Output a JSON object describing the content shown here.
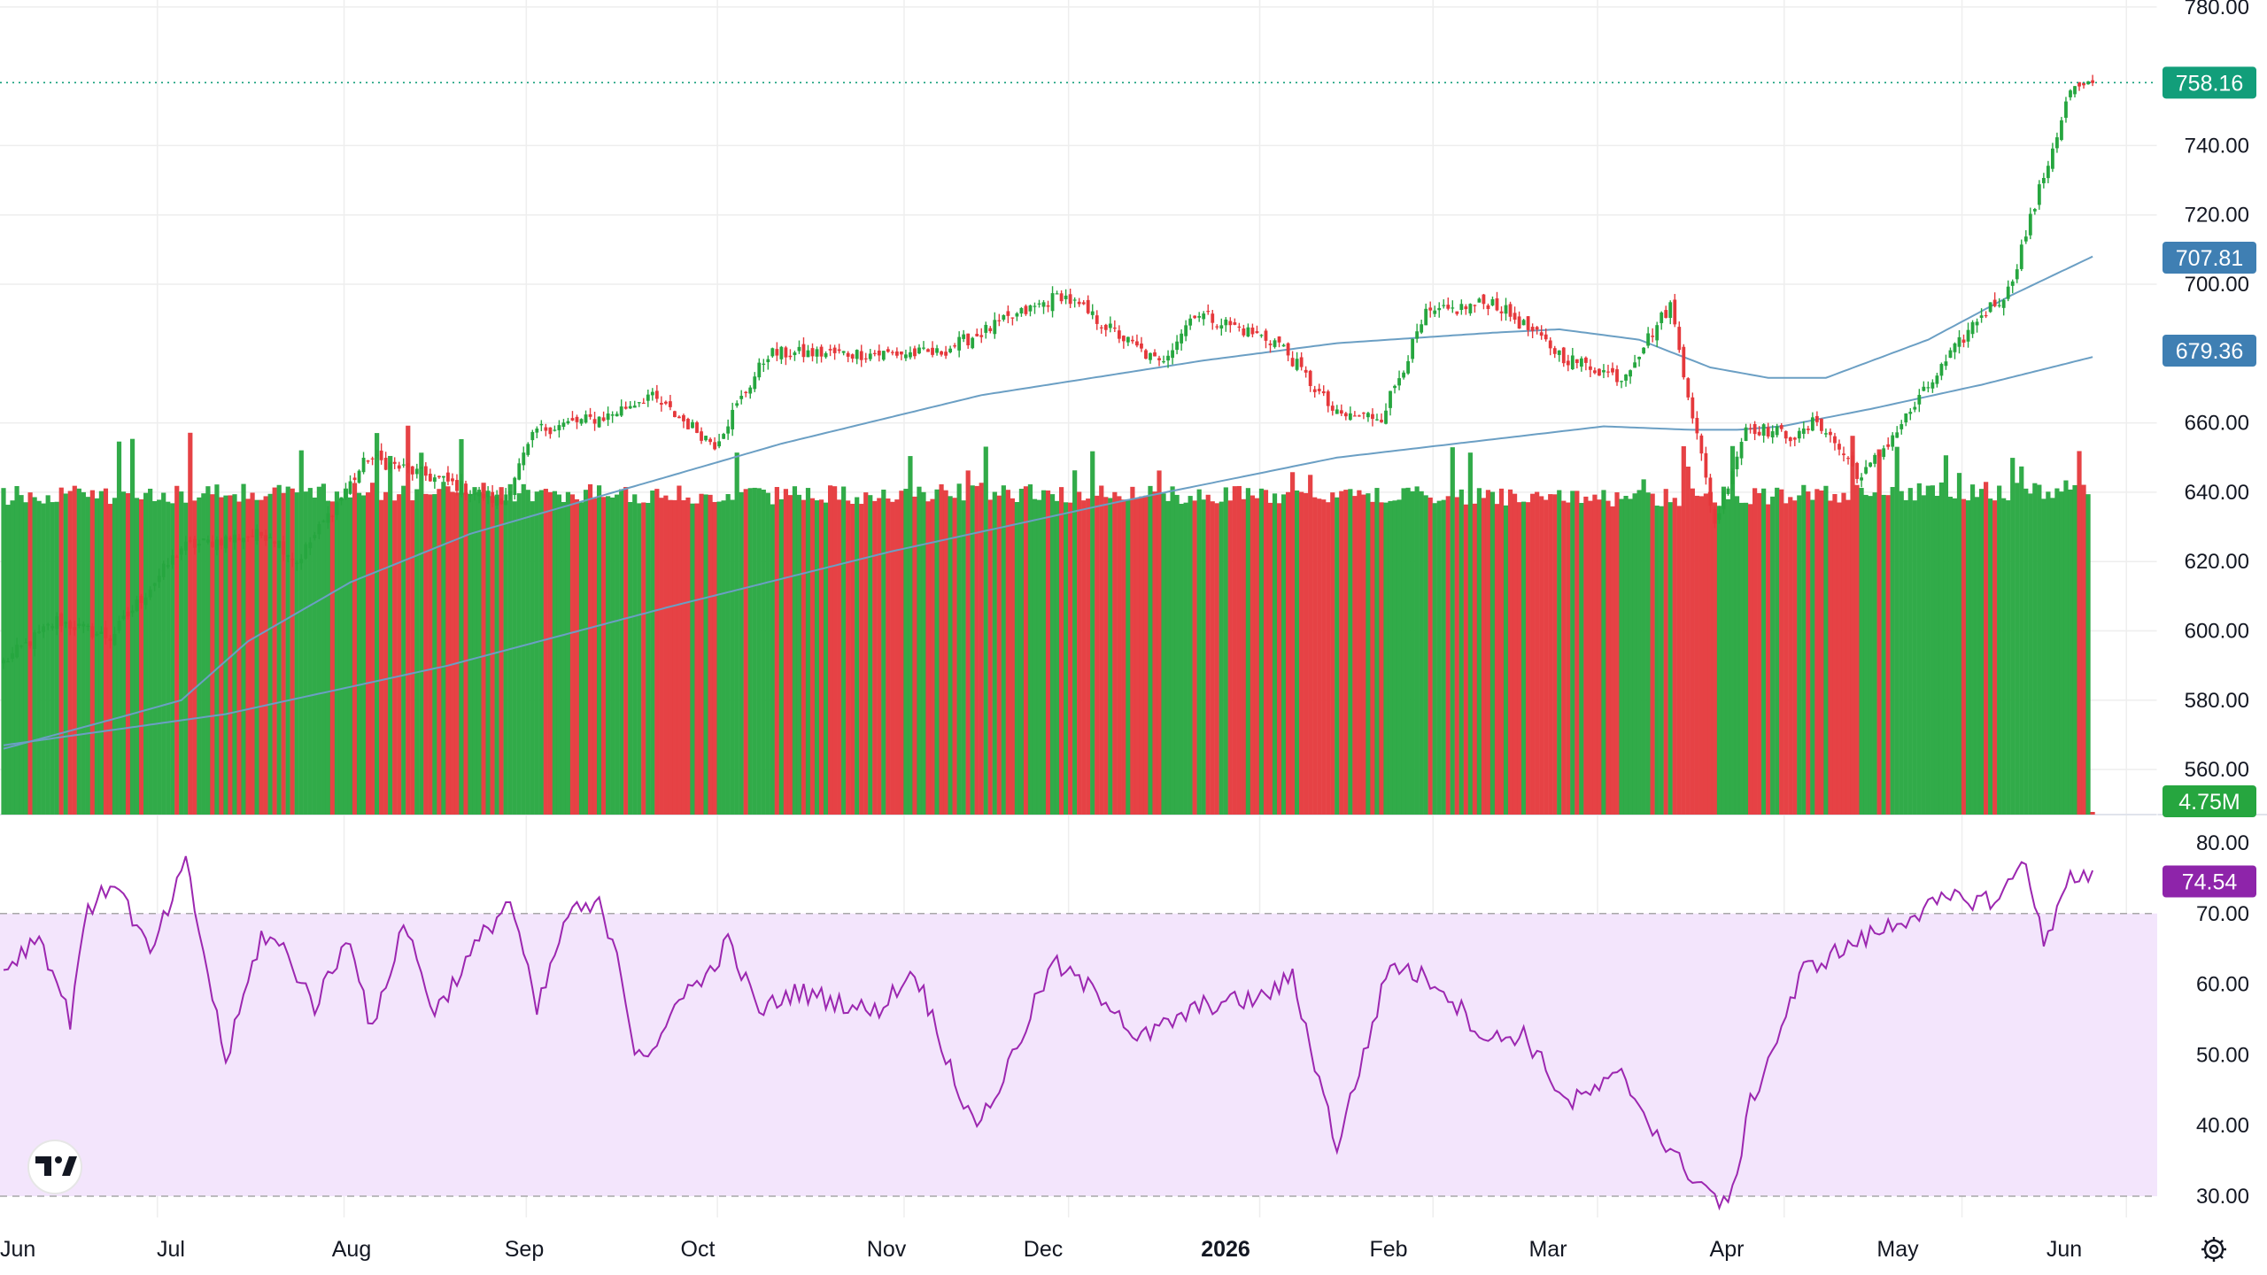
{
  "chart_data": {
    "type": "candlestick",
    "price_axis": {
      "ticks": [
        "780.00",
        "740.00",
        "720.00",
        "700.00",
        "660.00",
        "640.00",
        "620.00",
        "600.00",
        "580.00",
        "560.00"
      ],
      "tick_values": [
        780,
        740,
        720,
        700,
        660,
        640,
        620,
        600,
        580,
        560
      ],
      "range": [
        547,
        782
      ],
      "grid": true
    },
    "rsi_axis": {
      "ticks": [
        "80.00",
        "70.00",
        "60.00",
        "50.00",
        "40.00",
        "30.00"
      ],
      "tick_values": [
        80,
        70,
        60,
        50,
        40,
        30
      ],
      "range": [
        27,
        84
      ],
      "upper_band": 70,
      "lower_band": 30
    },
    "time_axis": {
      "labels": [
        "Jun",
        "Jul",
        "Aug",
        "Sep",
        "Oct",
        "Nov",
        "Dec",
        "2026",
        "Feb",
        "Mar",
        "Apr",
        "May",
        "Jun"
      ],
      "bold": [
        false,
        false,
        false,
        false,
        false,
        false,
        false,
        true,
        false,
        false,
        false,
        false,
        false
      ]
    },
    "badges": {
      "last_price": "758.16",
      "ma_short": "707.81",
      "ma_long": "679.36",
      "volume": "4.75M",
      "rsi": "74.54"
    },
    "colors": {
      "up": "#26a63f",
      "down": "#e5383b",
      "last_price": "#129e7a",
      "ma": "#6b9fc4",
      "ma_badge": "#3f7fb3",
      "rsi_line": "#9c27b0",
      "rsi_fill": "#f3e5fc",
      "rsi_badge": "#8e24aa",
      "grid": "#eeeeee"
    },
    "series_price_anchors": [
      [
        0,
        591
      ],
      [
        12,
        603
      ],
      [
        24,
        598
      ],
      [
        40,
        624
      ],
      [
        52,
        627
      ],
      [
        60,
        628
      ],
      [
        66,
        620
      ],
      [
        82,
        650
      ],
      [
        102,
        642
      ],
      [
        112,
        637
      ],
      [
        120,
        658
      ],
      [
        136,
        662
      ],
      [
        145,
        668
      ],
      [
        160,
        654
      ],
      [
        172,
        680
      ],
      [
        190,
        680
      ],
      [
        210,
        680
      ],
      [
        238,
        697
      ],
      [
        260,
        677
      ],
      [
        268,
        692
      ],
      [
        287,
        683
      ],
      [
        300,
        662
      ],
      [
        310,
        662
      ],
      [
        320,
        691
      ],
      [
        335,
        695
      ],
      [
        351,
        679
      ],
      [
        364,
        673
      ],
      [
        375,
        694
      ],
      [
        385,
        631
      ],
      [
        392,
        659
      ],
      [
        404,
        656
      ],
      [
        408,
        661
      ],
      [
        418,
        644
      ],
      [
        430,
        665
      ],
      [
        444,
        690
      ],
      [
        451,
        698
      ],
      [
        465,
        756
      ],
      [
        470,
        757
      ]
    ],
    "series_rsi_anchors": [
      [
        0,
        62
      ],
      [
        8,
        67
      ],
      [
        15,
        55
      ],
      [
        18,
        69
      ],
      [
        25,
        75
      ],
      [
        33,
        64
      ],
      [
        41,
        77
      ],
      [
        50,
        49
      ],
      [
        58,
        67
      ],
      [
        63,
        65
      ],
      [
        70,
        57
      ],
      [
        78,
        67
      ],
      [
        83,
        53
      ],
      [
        90,
        69
      ],
      [
        97,
        56
      ],
      [
        108,
        67
      ],
      [
        114,
        72
      ],
      [
        120,
        56
      ],
      [
        127,
        70
      ],
      [
        134,
        71
      ],
      [
        138,
        65
      ],
      [
        142,
        51
      ],
      [
        147,
        50
      ],
      [
        152,
        59
      ],
      [
        157,
        60
      ],
      [
        163,
        66
      ],
      [
        170,
        56
      ],
      [
        178,
        59
      ],
      [
        185,
        58
      ],
      [
        196,
        56
      ],
      [
        205,
        62
      ],
      [
        218,
        40
      ],
      [
        223,
        44
      ],
      [
        236,
        63
      ],
      [
        250,
        57
      ],
      [
        255,
        52
      ],
      [
        270,
        57
      ],
      [
        283,
        58
      ],
      [
        290,
        61
      ],
      [
        300,
        37
      ],
      [
        312,
        63
      ],
      [
        323,
        60
      ],
      [
        334,
        52
      ],
      [
        342,
        53
      ],
      [
        352,
        43
      ],
      [
        364,
        47
      ],
      [
        375,
        36
      ],
      [
        385,
        30
      ],
      [
        388,
        28
      ],
      [
        393,
        43
      ],
      [
        400,
        54
      ],
      [
        405,
        62
      ],
      [
        414,
        65
      ],
      [
        430,
        70
      ],
      [
        438,
        72
      ],
      [
        449,
        72
      ],
      [
        455,
        78
      ],
      [
        459,
        65
      ],
      [
        464,
        75
      ]
    ],
    "series_volume_anchors": [
      [
        0,
        560
      ],
      [
        100,
        555
      ],
      [
        170,
        560
      ],
      [
        220,
        556
      ],
      [
        262,
        560
      ],
      [
        300,
        559
      ],
      [
        350,
        562
      ],
      [
        384,
        561
      ],
      [
        420,
        556
      ],
      [
        450,
        555
      ],
      [
        466,
        553
      ]
    ],
    "ma_short_anchors": [
      [
        0,
        566
      ],
      [
        26,
        575
      ],
      [
        40,
        580
      ],
      [
        55,
        597
      ],
      [
        78,
        614
      ],
      [
        105,
        628
      ],
      [
        140,
        641
      ],
      [
        175,
        654
      ],
      [
        220,
        668
      ],
      [
        270,
        678
      ],
      [
        300,
        683
      ],
      [
        335,
        686
      ],
      [
        350,
        687
      ],
      [
        368,
        684
      ],
      [
        384,
        676
      ],
      [
        397,
        673
      ],
      [
        410,
        673
      ],
      [
        433,
        684
      ],
      [
        452,
        697
      ],
      [
        470,
        708
      ]
    ],
    "ma_long_anchors": [
      [
        0,
        567
      ],
      [
        50,
        576
      ],
      [
        100,
        590
      ],
      [
        150,
        607
      ],
      [
        200,
        623
      ],
      [
        250,
        637
      ],
      [
        300,
        650
      ],
      [
        340,
        656
      ],
      [
        360,
        659
      ],
      [
        380,
        658
      ],
      [
        390,
        658
      ],
      [
        400,
        659
      ],
      [
        420,
        664
      ],
      [
        445,
        671
      ],
      [
        470,
        679
      ]
    ]
  }
}
